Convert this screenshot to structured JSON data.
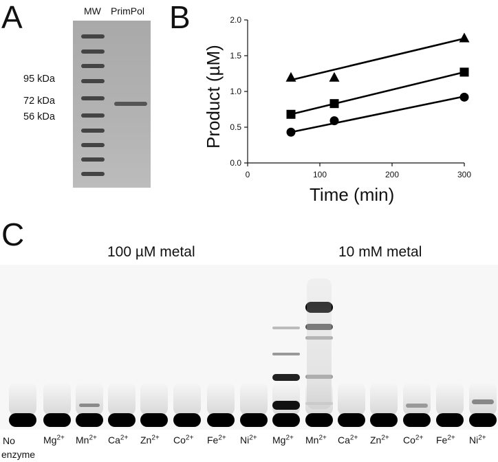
{
  "panels": {
    "A": {
      "letter": "A",
      "lanes": [
        "MW",
        "PrimPol"
      ],
      "markers": [
        "95 kDa",
        "72 kDa",
        "56 kDa"
      ]
    },
    "B": {
      "letter": "B",
      "xaxis_ticks": [
        "0",
        "100",
        "200",
        "300"
      ],
      "yaxis_ticks": [
        "0.0",
        "0.5",
        "1.0",
        "1.5",
        "2.0"
      ]
    },
    "C": {
      "letter": "C",
      "group_left": "100 µM metal",
      "group_right": "10 mM metal",
      "no_enzyme_line1": "No",
      "no_enzyme_line2": "enzyme",
      "metal_base": [
        "Mg",
        "Mn",
        "Ca",
        "Zn",
        "Co",
        "Fe",
        "Ni"
      ],
      "charge": "2+"
    }
  },
  "chart_data": {
    "type": "scatter",
    "xlabel": "Time (min)",
    "ylabel": "Product (µM)",
    "xlim": [
      0,
      300
    ],
    "ylim": [
      0.0,
      2.0
    ],
    "grid": false,
    "series": [
      {
        "marker": "triangle",
        "x": [
          60,
          120,
          300
        ],
        "y": [
          1.2,
          1.2,
          1.75
        ],
        "fit": [
          [
            60,
            1.16
          ],
          [
            300,
            1.74
          ]
        ]
      },
      {
        "marker": "square",
        "x": [
          60,
          120,
          300
        ],
        "y": [
          0.68,
          0.83,
          1.27
        ],
        "fit": [
          [
            60,
            0.68
          ],
          [
            300,
            1.27
          ]
        ]
      },
      {
        "marker": "circle",
        "x": [
          60,
          120,
          300
        ],
        "y": [
          0.43,
          0.59,
          0.92
        ],
        "fit": [
          [
            60,
            0.43
          ],
          [
            300,
            0.93
          ]
        ]
      }
    ]
  }
}
